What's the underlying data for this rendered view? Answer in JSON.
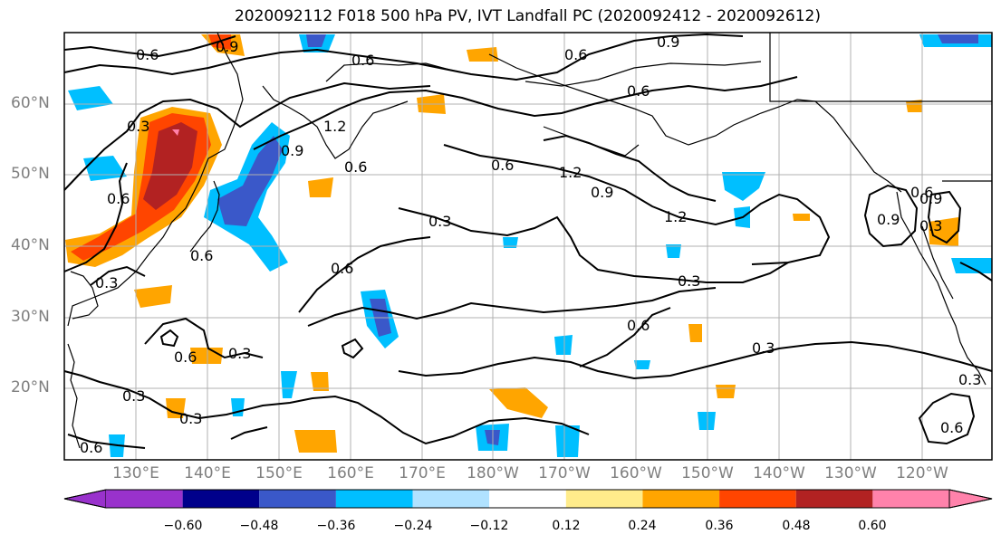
{
  "title": "2020092112 F018 500 hPa PV, IVT Landfall PC (2020092412 - 2020092612)",
  "lat_labels": [
    "60°N",
    "50°N",
    "40°N",
    "30°N",
    "20°N"
  ],
  "lon_labels": [
    "130°E",
    "140°E",
    "150°E",
    "160°E",
    "170°E",
    "180°W",
    "170°W",
    "160°W",
    "150°W",
    "140°W",
    "130°W",
    "120°W"
  ],
  "contour_labels": [
    "0.9",
    "0.6",
    "0.6",
    "0.9",
    "0.6",
    "0.6",
    "0.3",
    "1.2",
    "0.9",
    "0.6",
    "0.6",
    "1.2",
    "0.9",
    "1.2",
    "0.3",
    "0.6",
    "0.3",
    "0.6",
    "0.6",
    "0.3",
    "0.6",
    "0.3",
    "0.3",
    "0.3",
    "0.6",
    "0.9",
    "0.6",
    "0.3",
    "0.6",
    "0.6",
    "0.9",
    "0.3"
  ],
  "colorbar": {
    "ticks": [
      "−0.60",
      "−0.48",
      "−0.36",
      "−0.24",
      "−0.12",
      "0.12",
      "0.24",
      "0.36",
      "0.48",
      "0.60"
    ],
    "colors": [
      "#9932cc",
      "#00008b",
      "#3a58c9",
      "#00bfff",
      "#b0e2ff",
      "#ffffff",
      "#ffec8b",
      "#ffa500",
      "#ff4500",
      "#b22222",
      "#ff82ab",
      "#ff82ab"
    ]
  }
}
